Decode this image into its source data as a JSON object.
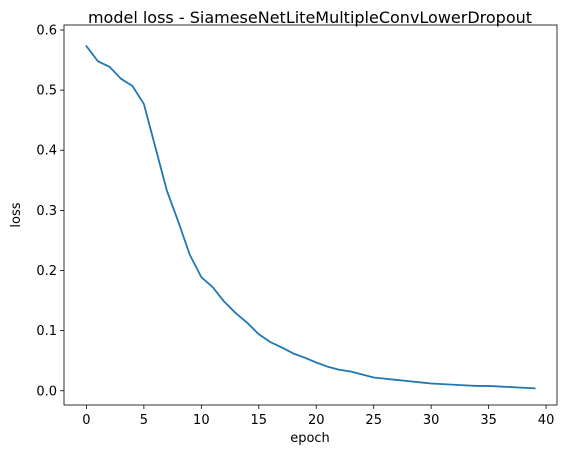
{
  "chart_data": {
    "type": "line",
    "title": "model loss - SiameseNetLiteMultipleConvLowerDropout",
    "xlabel": "epoch",
    "ylabel": "loss",
    "xlim": [
      -1.95,
      40.95
    ],
    "ylim": [
      -0.0237,
      0.6083
    ],
    "xticks": [
      0,
      5,
      10,
      15,
      20,
      25,
      30,
      35,
      40
    ],
    "yticks": [
      0.0,
      0.1,
      0.2,
      0.3,
      0.4,
      0.5,
      0.6
    ],
    "xtick_labels": [
      "0",
      "5",
      "10",
      "15",
      "20",
      "25",
      "30",
      "35",
      "40"
    ],
    "ytick_labels": [
      "0.0",
      "0.1",
      "0.2",
      "0.3",
      "0.4",
      "0.5",
      "0.6"
    ],
    "grid": false,
    "series": [
      {
        "color": "#1f77b4",
        "x": [
          0,
          1,
          2,
          3,
          4,
          5,
          6,
          7,
          8,
          9,
          10,
          11,
          12,
          13,
          14,
          15,
          16,
          17,
          18,
          19,
          20,
          21,
          22,
          23,
          24,
          25,
          26,
          27,
          28,
          29,
          30,
          31,
          32,
          33,
          34,
          35,
          36,
          37,
          38,
          39
        ],
        "values": [
          0.573,
          0.548,
          0.539,
          0.519,
          0.507,
          0.477,
          0.405,
          0.333,
          0.281,
          0.226,
          0.189,
          0.172,
          0.148,
          0.129,
          0.113,
          0.094,
          0.081,
          0.072,
          0.062,
          0.055,
          0.047,
          0.04,
          0.035,
          0.032,
          0.027,
          0.022,
          0.02,
          0.018,
          0.016,
          0.014,
          0.012,
          0.011,
          0.01,
          0.009,
          0.008,
          0.008,
          0.007,
          0.006,
          0.005,
          0.004
        ]
      }
    ]
  }
}
